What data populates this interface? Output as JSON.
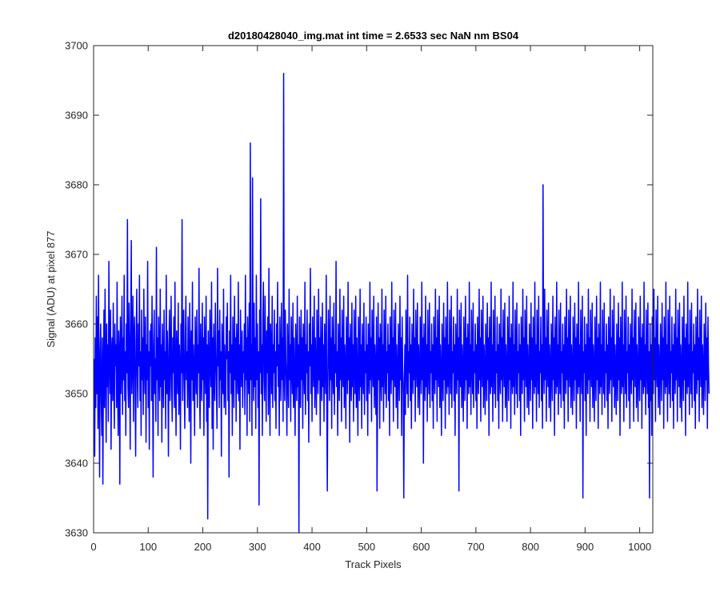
{
  "chart_data": {
    "type": "line",
    "title": "d20180428040_img.mat int time = 2.6533 sec  NaN nm BS04",
    "xlabel": "Track Pixels",
    "ylabel": "Signal (ADU) at pixel 877",
    "xlim": [
      0,
      1024
    ],
    "ylim": [
      3630,
      3700
    ],
    "xticks": [
      0,
      100,
      200,
      300,
      400,
      500,
      600,
      700,
      800,
      900,
      1000
    ],
    "yticks": [
      3630,
      3640,
      3650,
      3660,
      3670,
      3680,
      3690,
      3700
    ],
    "grid": false,
    "series": [
      {
        "color": "#0000ff",
        "x_start": 1,
        "x_step": 1,
        "values": [
          3655,
          3641,
          3658,
          3648,
          3664,
          3650,
          3661,
          3645,
          3667,
          3652,
          3638,
          3656,
          3660,
          3649,
          3644,
          3658,
          3637,
          3653,
          3662,
          3648,
          3665,
          3654,
          3643,
          3660,
          3651,
          3657,
          3646,
          3669,
          3655,
          3650,
          3662,
          3642,
          3656,
          3658,
          3649,
          3663,
          3652,
          3645,
          3660,
          3654,
          3657,
          3648,
          3666,
          3651,
          3644,
          3659,
          3656,
          3637,
          3661,
          3650,
          3655,
          3664,
          3647,
          3658,
          3652,
          3667,
          3649,
          3656,
          3644,
          3660,
          3653,
          3675,
          3651,
          3648,
          3663,
          3656,
          3642,
          3659,
          3672,
          3650,
          3655,
          3664,
          3646,
          3658,
          3661,
          3651,
          3641,
          3657,
          3665,
          3653,
          3648,
          3660,
          3654,
          3667,
          3649,
          3656,
          3644,
          3662,
          3652,
          3658,
          3647,
          3665,
          3655,
          3650,
          3661,
          3643,
          3657,
          3652,
          3669,
          3648,
          3656,
          3642,
          3659,
          3654,
          3660,
          3649,
          3664,
          3653,
          3638,
          3657,
          3662,
          3650,
          3655,
          3646,
          3671,
          3652,
          3658,
          3644,
          3661,
          3656,
          3649,
          3665,
          3651,
          3657,
          3643,
          3660,
          3654,
          3648,
          3662,
          3652,
          3656,
          3645,
          3667,
          3650,
          3659,
          3653,
          3641,
          3657,
          3662,
          3649,
          3655,
          3664,
          3651,
          3646,
          3658,
          3653,
          3661,
          3648,
          3666,
          3652,
          3644,
          3659,
          3655,
          3650,
          3663,
          3647,
          3657,
          3654,
          3642,
          3660,
          3653,
          3675,
          3649,
          3656,
          3662,
          3651,
          3645,
          3658,
          3664,
          3652,
          3656,
          3648,
          3661,
          3654,
          3646,
          3663,
          3655,
          3640,
          3659,
          3652,
          3666,
          3649,
          3657,
          3653,
          3644,
          3661,
          3655,
          3650,
          3662,
          3648,
          3657,
          3653,
          3668,
          3651,
          3645,
          3660,
          3654,
          3649,
          3663,
          3652,
          3658,
          3644,
          3661,
          3655,
          3650,
          3664,
          3646,
          3657,
          3632,
          3659,
          3653,
          3648,
          3662,
          3655,
          3651,
          3666,
          3645,
          3658,
          3642,
          3660,
          3653,
          3649,
          3663,
          3656,
          3651,
          3645,
          3668,
          3654,
          3659,
          3648,
          3662,
          3652,
          3656,
          3641,
          3660,
          3654,
          3650,
          3665,
          3648,
          3657,
          3653,
          3647,
          3661,
          3655,
          3663,
          3649,
          3656,
          3638,
          3659,
          3653,
          3667,
          3650,
          3657,
          3644,
          3661,
          3655,
          3648,
          3664,
          3652,
          3658,
          3646,
          3660,
          3654,
          3650,
          3666,
          3649,
          3657,
          3642,
          3662,
          3655,
          3651,
          3659,
          3648,
          3656,
          3653,
          3660,
          3647,
          3667,
          3652,
          3658,
          3644,
          3661,
          3655,
          3650,
          3663,
          3646,
          3686,
          3652,
          3657,
          3644,
          3681,
          3655,
          3649,
          3663,
          3651,
          3658,
          3645,
          3667,
          3652,
          3660,
          3648,
          3656,
          3634,
          3662,
          3653,
          3678,
          3650,
          3657,
          3644,
          3661,
          3666,
          3652,
          3649,
          3664,
          3655,
          3646,
          3659,
          3653,
          3661,
          3647,
          3668,
          3654,
          3644,
          3660,
          3656,
          3650,
          3664,
          3648,
          3657,
          3653,
          3662,
          3649,
          3656,
          3645,
          3660,
          3654,
          3666,
          3651,
          3657,
          3644,
          3661,
          3655,
          3649,
          3663,
          3652,
          3658,
          3646,
          3696,
          3653,
          3649,
          3662,
          3655,
          3651,
          3644,
          3660,
          3654,
          3648,
          3665,
          3652,
          3657,
          3646,
          3661,
          3655,
          3650,
          3663,
          3648,
          3658,
          3652,
          3644,
          3660,
          3655,
          3649,
          3664,
          3651,
          3657,
          3630,
          3661,
          3654,
          3648,
          3662,
          3652,
          3658,
          3645,
          3660,
          3655,
          3650,
          3666,
          3647,
          3657,
          3653,
          3662,
          3649,
          3656,
          3643,
          3660,
          3654,
          3668,
          3650,
          3657,
          3646,
          3661,
          3655,
          3651,
          3664,
          3648,
          3658,
          3653,
          3647,
          3662,
          3655,
          3650,
          3665,
          3652,
          3658,
          3644,
          3661,
          3654,
          3649,
          3663,
          3651,
          3657,
          3646,
          3660,
          3655,
          3650,
          3667,
          3648,
          3636,
          3653,
          3662,
          3656,
          3649,
          3664,
          3652,
          3658,
          3645,
          3661,
          3655,
          3650,
          3663,
          3647,
          3657,
          3653,
          3669,
          3651,
          3656,
          3644,
          3660,
          3654,
          3649,
          3665,
          3652,
          3658,
          3646,
          3662,
          3655,
          3651,
          3664,
          3648,
          3657,
          3653,
          3645,
          3661,
          3655,
          3650,
          3666,
          3652,
          3658,
          3643,
          3660,
          3654,
          3649,
          3663,
          3651,
          3657,
          3646,
          3662,
          3655,
          3650,
          3664,
          3648,
          3658,
          3652,
          3644,
          3661,
          3655,
          3649,
          3665,
          3651,
          3657,
          3645,
          3660,
          3654,
          3650,
          3663,
          3647,
          3656,
          3653,
          3661,
          3649,
          3657,
          3644,
          3660,
          3654,
          3650,
          3666,
          3652,
          3658,
          3646,
          3662,
          3655,
          3651,
          3664,
          3648,
          3657,
          3653,
          3647,
          3661,
          3636,
          3650,
          3663,
          3652,
          3658,
          3645,
          3660,
          3654,
          3649,
          3665,
          3651,
          3657,
          3646,
          3662,
          3655,
          3650,
          3664,
          3648,
          3656,
          3653,
          3660,
          3649,
          3657,
          3644,
          3661,
          3655,
          3650,
          3666,
          3652,
          3658,
          3646,
          3662,
          3654,
          3651,
          3663,
          3648,
          3657,
          3653,
          3645,
          3660,
          3655,
          3649,
          3664,
          3652,
          3658,
          3644,
          3661,
          3654,
          3650,
          3635,
          3651,
          3657,
          3647,
          3662,
          3655,
          3650,
          3667,
          3648,
          3656,
          3653,
          3661,
          3649,
          3657,
          3645,
          3660,
          3654,
          3650,
          3665,
          3652,
          3658,
          3646,
          3662,
          3655,
          3651,
          3663,
          3648,
          3657,
          3653,
          3647,
          3661,
          3655,
          3650,
          3666,
          3652,
          3658,
          3640,
          3660,
          3654,
          3649,
          3664,
          3651,
          3657,
          3646,
          3662,
          3655,
          3650,
          3663,
          3648,
          3656,
          3653,
          3660,
          3649,
          3657,
          3645,
          3661,
          3654,
          3650,
          3665,
          3652,
          3658,
          3646,
          3662,
          3655,
          3651,
          3664,
          3648,
          3657,
          3653,
          3644,
          3660,
          3655,
          3649,
          3663,
          3652,
          3658,
          3645,
          3661,
          3654,
          3650,
          3666,
          3651,
          3657,
          3647,
          3662,
          3655,
          3650,
          3664,
          3648,
          3656,
          3653,
          3661,
          3649,
          3657,
          3644,
          3660,
          3654,
          3650,
          3665,
          3652,
          3658,
          3636,
          3662,
          3655,
          3651,
          3663,
          3648,
          3657,
          3653,
          3646,
          3661,
          3655,
          3649,
          3664,
          3652,
          3658,
          3645,
          3660,
          3654,
          3650,
          3666,
          3651,
          3657,
          3647,
          3662,
          3655,
          3650,
          3663,
          3648,
          3656,
          3653,
          3660,
          3649,
          3657,
          3645,
          3661,
          3654,
          3650,
          3665,
          3652,
          3658,
          3646,
          3662,
          3655,
          3651,
          3664,
          3648,
          3657,
          3653,
          3647,
          3660,
          3655,
          3649,
          3663,
          3652,
          3658,
          3644,
          3661,
          3654,
          3650,
          3666,
          3651,
          3657,
          3646,
          3662,
          3655,
          3650,
          3664,
          3648,
          3656,
          3653,
          3661,
          3649,
          3657,
          3645,
          3660,
          3654,
          3650,
          3665,
          3652,
          3658,
          3646,
          3662,
          3655,
          3651,
          3663,
          3648,
          3657,
          3653,
          3646,
          3661,
          3655,
          3649,
          3664,
          3652,
          3658,
          3645,
          3660,
          3654,
          3650,
          3666,
          3651,
          3657,
          3647,
          3662,
          3655,
          3650,
          3663,
          3648,
          3656,
          3653,
          3660,
          3649,
          3657,
          3644,
          3661,
          3654,
          3650,
          3665,
          3652,
          3658,
          3646,
          3662,
          3655,
          3651,
          3664,
          3648,
          3657,
          3653,
          3647,
          3660,
          3655,
          3649,
          3663,
          3652,
          3658,
          3645,
          3661,
          3654,
          3650,
          3666,
          3651,
          3657,
          3646,
          3662,
          3655,
          3650,
          3664,
          3648,
          3656,
          3653,
          3661,
          3649,
          3657,
          3645,
          3680,
          3654,
          3650,
          3665,
          3652,
          3658,
          3646,
          3662,
          3655,
          3651,
          3663,
          3648,
          3657,
          3653,
          3646,
          3660,
          3655,
          3649,
          3664,
          3652,
          3658,
          3644,
          3661,
          3654,
          3650,
          3666,
          3651,
          3657,
          3647,
          3662,
          3655,
          3650,
          3663,
          3648,
          3656,
          3653,
          3660,
          3649,
          3657,
          3645,
          3661,
          3654,
          3650,
          3665,
          3652,
          3658,
          3646,
          3662,
          3655,
          3651,
          3664,
          3648,
          3657,
          3653,
          3647,
          3661,
          3655,
          3649,
          3663,
          3652,
          3658,
          3645,
          3660,
          3654,
          3650,
          3666,
          3651,
          3657,
          3646,
          3662,
          3655,
          3650,
          3664,
          3635,
          3656,
          3653,
          3661,
          3649,
          3657,
          3644,
          3660,
          3654,
          3650,
          3665,
          3652,
          3658,
          3646,
          3662,
          3655,
          3651,
          3663,
          3648,
          3657,
          3653,
          3646,
          3661,
          3655,
          3649,
          3664,
          3652,
          3658,
          3645,
          3660,
          3654,
          3650,
          3666,
          3651,
          3657,
          3647,
          3662,
          3655,
          3650,
          3663,
          3648,
          3656,
          3653,
          3660,
          3649,
          3657,
          3645,
          3661,
          3654,
          3650,
          3665,
          3652,
          3658,
          3646,
          3662,
          3655,
          3651,
          3664,
          3648,
          3657,
          3653,
          3647,
          3660,
          3655,
          3649,
          3663,
          3652,
          3658,
          3644,
          3661,
          3654,
          3650,
          3666,
          3651,
          3657,
          3646,
          3662,
          3655,
          3650,
          3664,
          3648,
          3656,
          3653,
          3661,
          3649,
          3657,
          3645,
          3660,
          3654,
          3650,
          3665,
          3652,
          3658,
          3646,
          3662,
          3655,
          3651,
          3663,
          3648,
          3657,
          3653,
          3646,
          3661,
          3655,
          3649,
          3664,
          3652,
          3658,
          3645,
          3660,
          3654,
          3650,
          3666,
          3651,
          3657,
          3647,
          3662,
          3655,
          3650,
          3663,
          3648,
          3656,
          3635,
          3660,
          3649,
          3657,
          3644,
          3661,
          3654,
          3650,
          3665,
          3652,
          3658,
          3646,
          3662,
          3655,
          3651,
          3664,
          3648,
          3657,
          3653,
          3647,
          3660,
          3655,
          3649,
          3663,
          3652,
          3658,
          3645,
          3661,
          3654,
          3650,
          3666,
          3651,
          3657,
          3646,
          3662,
          3655,
          3650,
          3664,
          3648,
          3656,
          3653,
          3661,
          3649,
          3657,
          3645,
          3660,
          3654,
          3650,
          3665,
          3652,
          3658,
          3646,
          3662,
          3655,
          3651,
          3663,
          3648,
          3657,
          3653,
          3646,
          3661,
          3655,
          3649,
          3664,
          3652,
          3658,
          3644,
          3660,
          3654,
          3650,
          3666,
          3651,
          3657,
          3647,
          3662,
          3655,
          3650,
          3663,
          3648,
          3656,
          3653,
          3660,
          3649,
          3657,
          3645,
          3661,
          3654,
          3650,
          3665,
          3652,
          3658,
          3646,
          3662,
          3655,
          3651,
          3664,
          3648,
          3657,
          3653,
          3647,
          3660,
          3655,
          3649,
          3663,
          3652,
          3658,
          3645,
          3661,
          3654,
          3650
        ]
      }
    ]
  }
}
